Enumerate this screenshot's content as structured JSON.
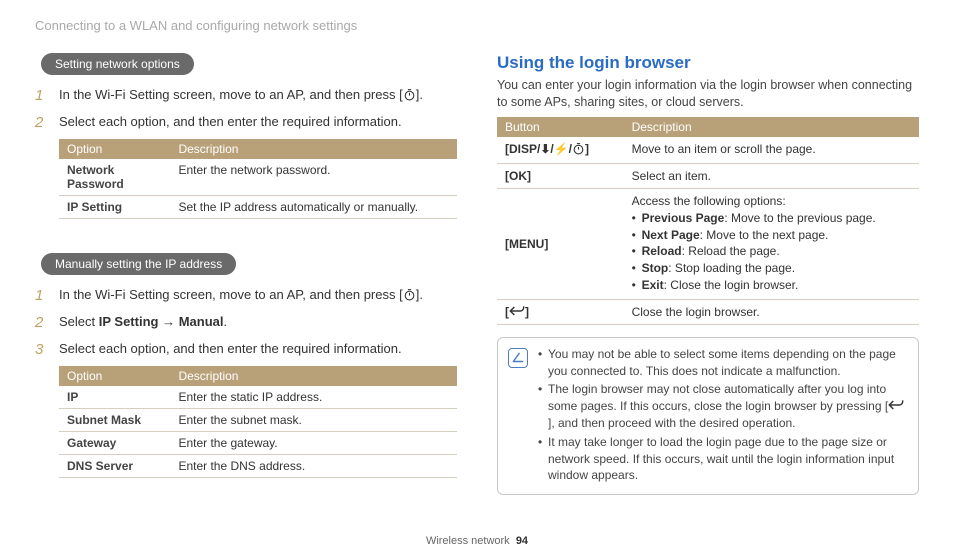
{
  "header": {
    "breadcrumb": "Connecting to a WLAN and configuring network settings"
  },
  "left": {
    "section1": {
      "pill": "Setting network options",
      "steps": [
        {
          "num": "1",
          "html": "In the Wi-Fi Setting screen, move to an AP, and then press [{timer}]."
        },
        {
          "num": "2",
          "html": "Select each option, and then enter the required information."
        }
      ],
      "table": {
        "headers": [
          "Option",
          "Description"
        ],
        "rows": [
          [
            "Network Password",
            "Enter the network password."
          ],
          [
            "IP Setting",
            "Set the IP address automatically or manually."
          ]
        ]
      }
    },
    "section2": {
      "pill": "Manually setting the IP address",
      "steps": [
        {
          "num": "1",
          "html": "In the Wi-Fi Setting screen, move to an AP, and then press [{timer}]."
        },
        {
          "num": "2",
          "html": "Select <b>IP Setting</b> → <b>Manual</b>."
        },
        {
          "num": "3",
          "html": "Select each option, and then enter the required information."
        }
      ],
      "table": {
        "headers": [
          "Option",
          "Description"
        ],
        "rows": [
          [
            "IP",
            "Enter the static IP address."
          ],
          [
            "Subnet Mask",
            "Enter the subnet mask."
          ],
          [
            "Gateway",
            "Enter the gateway."
          ],
          [
            "DNS Server",
            "Enter the DNS address."
          ]
        ]
      }
    }
  },
  "right": {
    "title": "Using the login browser",
    "intro": "You can enter your login information via the login browser when connecting to some APs, sharing sites, or cloud servers.",
    "table": {
      "headers": [
        "Button",
        "Description"
      ],
      "rows": [
        {
          "btn_html": "[<b>DISP/⬇/⚡/{timer}</b>]",
          "desc_html": "Move to an item or scroll the page."
        },
        {
          "btn_html": "[<b>OK</b>]",
          "desc_html": "Select an item."
        },
        {
          "btn_html": "[<b>MENU</b>]",
          "desc_html": "Access the following options:<ul class=\"opts-list\"><li><b>Previous Page</b>: Move to the previous page.</li><li><b>Next Page</b>: Move to the next page.</li><li><b>Reload</b>: Reload the page.</li><li><b>Stop</b>: Stop loading the page.</li><li><b>Exit</b>: Close the login browser.</li></ul>"
        },
        {
          "btn_html": "[{back}]",
          "desc_html": "Close the login browser."
        }
      ]
    },
    "notes": [
      "You may not be able to select some items depending on the page you connected to. This does not indicate a malfunction.",
      "The login browser may not close automatically after you log into some pages. If this occurs, close the login browser by pressing [{back}], and then proceed with the desired operation.",
      "It may take longer to load the login page due to the page size or network speed. If this occurs, wait until the login information input window appears."
    ]
  },
  "footer": {
    "section": "Wireless network",
    "page": "94"
  },
  "icons": {
    "timer_svg": "<svg viewBox='0 0 24 24' fill='none' stroke='#333' stroke-width='2'><circle cx='12' cy='14' r='8'/><path d='M12 14 L12 9'/><path d='M9 3 L15 3'/></svg>",
    "back_svg": "<svg viewBox='0 0 24 16' fill='none' stroke='#333' stroke-width='2.2'><path d='M8 2 L2 8 L8 14 M2 8 L17 8 A5 5 0 0 0 22 3 L22 1'/></svg>",
    "note_svg": "<svg viewBox='0 0 24 24' fill='none' stroke='#4a7fc4' stroke-width='2.5'><path d='M4 18 L14 4 M4 18 L20 18' stroke-linecap='round'/></svg>"
  },
  "colors": {
    "pill_bg": "#6a6a6a",
    "th_bg": "#b8a078",
    "heading_blue": "#2a6bc4",
    "step_number": "#c0a062",
    "border": "#d5cfc2"
  }
}
